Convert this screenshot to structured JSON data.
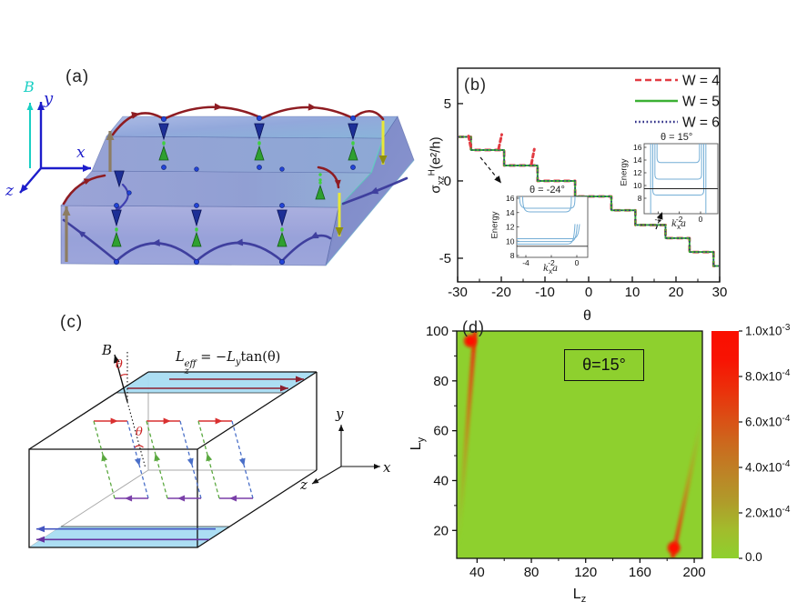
{
  "figure": {
    "panel_a": {
      "label": "(a)",
      "axis_labels": {
        "B": "B",
        "x": "x",
        "y": "y",
        "z": "z"
      },
      "colors": {
        "field_axis": "#19cfc4",
        "frame_axis": "#1d1dcb",
        "top_orbit": "#8e1c22",
        "bottom_orbit": "#3f3f9e",
        "up_edge_arrow": "#8d7d62",
        "down_edge_arrow": "#e8e838",
        "spin_down_cone": "#1d2f96",
        "spin_up_cone": "#2fa030"
      }
    },
    "panel_b": {
      "label": "(b)",
      "ylabel": {
        "base": "σ",
        "sub": "xz",
        "sup": "H",
        "units": "(e²/h)"
      },
      "xlabel": "θ",
      "legend": [
        {
          "label": "W = 4",
          "color": "#e23b42",
          "style": "dashed"
        },
        {
          "label": "W = 5",
          "color": "#3cb034",
          "style": "solid"
        },
        {
          "label": "W = 6",
          "color": "#2b2b85",
          "style": "dotted"
        }
      ],
      "insets": [
        {
          "title": "θ = -24°",
          "ylabel": "Energy",
          "xlabel": {
            "base": "k",
            "sub": "x",
            "tail": "a"
          }
        },
        {
          "title": "θ = 15°",
          "ylabel": "Energy",
          "xlabel": {
            "base": "k",
            "sub": "x",
            "tail": "a"
          }
        }
      ]
    },
    "panel_c": {
      "label": "(c)",
      "field_label": "B",
      "angle_label": "θ",
      "formula": {
        "base": "L",
        "sup": "eff",
        "sub": "z",
        "eq": " = −",
        "base2": "L",
        "sub2": "y",
        "tail": "tan(θ)"
      },
      "axis_labels": {
        "x": "x",
        "y": "y",
        "z": "z"
      }
    },
    "panel_d": {
      "label": "(d)",
      "annotation": "θ=15°",
      "xlabel": {
        "base": "L",
        "sub": "z"
      },
      "ylabel": {
        "base": "L",
        "sub": "y"
      },
      "colorbar_ticks": [
        {
          "m": "0.0",
          "e": ""
        },
        {
          "m": "2.0x10",
          "e": "-4"
        },
        {
          "m": "4.0x10",
          "e": "-4"
        },
        {
          "m": "6.0x10",
          "e": "-4"
        },
        {
          "m": "8.0x10",
          "e": "-4"
        },
        {
          "m": "1.0x10",
          "e": "-3"
        }
      ]
    }
  },
  "chart_data": [
    {
      "id": "panel_b_main",
      "type": "line",
      "title": "",
      "xlabel": "θ",
      "ylabel": "σ_xz^H (e²/h)",
      "xlim": [
        -30,
        30
      ],
      "ylim": [
        -6.53,
        7.29
      ],
      "grid": false,
      "xticks": [
        -30,
        -20,
        -10,
        0,
        10,
        20,
        30
      ],
      "xminorticks": [
        -25,
        -15,
        -5,
        5,
        15,
        25
      ],
      "yticks": [
        5,
        0,
        -5
      ],
      "legend_position": "top-right",
      "series": [
        {
          "name": "W = 4",
          "color": "#e23b42",
          "style": "dashed"
        },
        {
          "name": "W = 5",
          "color": "#3cb034",
          "style": "solid"
        },
        {
          "name": "W = 6",
          "color": "#2b2b85",
          "style": "dotted"
        }
      ],
      "steps": [
        [
          -30,
          -26.95,
          2.85
        ],
        [
          -26.95,
          -19.35,
          2.0
        ],
        [
          -19.35,
          -11.7,
          1.0
        ],
        [
          -11.7,
          -3.1,
          0.0
        ],
        [
          -3.1,
          5.2,
          -1.0
        ],
        [
          5.2,
          10.7,
          -1.9
        ],
        [
          10.7,
          17.6,
          -2.85
        ],
        [
          17.6,
          23.1,
          -3.7
        ],
        [
          23.1,
          28.6,
          -4.6
        ],
        [
          28.6,
          30,
          -5.5
        ]
      ],
      "w4_spikes": [
        [
          [
            -27.5,
            2.9
          ],
          [
            -27.0,
            2.2
          ]
        ],
        [
          [
            -20.6,
            2.1
          ],
          [
            -19.9,
            3.0
          ]
        ],
        [
          [
            -13.1,
            1.1
          ],
          [
            -12.45,
            2.05
          ]
        ]
      ]
    },
    {
      "id": "panel_b_inset_left",
      "type": "line",
      "title": "θ = -24°",
      "xlabel": "k_x a",
      "ylabel": "Energy",
      "xlim": [
        -4.71,
        0.86
      ],
      "ylim": [
        7.75,
        16.25
      ],
      "xticks": [
        -4,
        -2,
        0
      ],
      "yticks": [
        16,
        14,
        12,
        10,
        8
      ],
      "flat_bands_top": [
        14.6,
        14.1
      ],
      "flat_bands_bottom": [
        10.35,
        9.95,
        9.6
      ],
      "fermi_level": 9.3
    },
    {
      "id": "panel_b_inset_right",
      "type": "line",
      "title": "θ = 15°",
      "xlabel": "k_x a",
      "ylabel": "Energy",
      "xlim": [
        -5.3,
        1.63
      ],
      "ylim": [
        5.6,
        16.6
      ],
      "xticks": [
        -4,
        -2,
        0
      ],
      "yticks": [
        16,
        14,
        12,
        10,
        8
      ],
      "flat_bands": [
        [
          13.6,
          -4.1,
          -0.1
        ],
        [
          11.0,
          -4.3,
          0.1
        ],
        [
          8.5,
          -4.5,
          0.3
        ]
      ],
      "fermi_level": 9.5
    },
    {
      "id": "panel_d_heatmap",
      "type": "heatmap",
      "xlabel": "L_z",
      "ylabel": "L_y",
      "xlim": [
        25,
        206
      ],
      "ylim": [
        8.8,
        100
      ],
      "xticks": [
        40,
        80,
        120,
        160,
        200
      ],
      "xminorticks": [
        60,
        100,
        140,
        180
      ],
      "yticks": [
        20,
        40,
        60,
        80,
        100
      ],
      "yminorticks": [
        30,
        50,
        70,
        90
      ],
      "background_value": 0.0,
      "background_color": "#8ed02e",
      "colorbar": {
        "min": 0.0,
        "max": 0.001,
        "tick_values": [
          0.0,
          0.0002,
          0.0004,
          0.0006,
          0.0008,
          0.001
        ],
        "gradient": [
          "#8ed02e",
          "#a2bc2c",
          "#b09b2a",
          "#bd8326",
          "#cb6a1e",
          "#dc4c14",
          "#ec2e0a",
          "#f81303",
          "#fa0f00"
        ]
      },
      "annotation": "θ=15°",
      "features": [
        {
          "type": "streak",
          "from": [
            38.5,
            100
          ],
          "to": [
            26,
            14
          ],
          "strong_end": "from"
        },
        {
          "type": "hotspot",
          "center": [
            35,
            96
          ]
        },
        {
          "type": "streak",
          "from": [
            206,
            66
          ],
          "to": [
            184,
            9
          ],
          "strong_end": "to"
        },
        {
          "type": "hotspot",
          "center": [
            185,
            13
          ]
        }
      ]
    }
  ]
}
